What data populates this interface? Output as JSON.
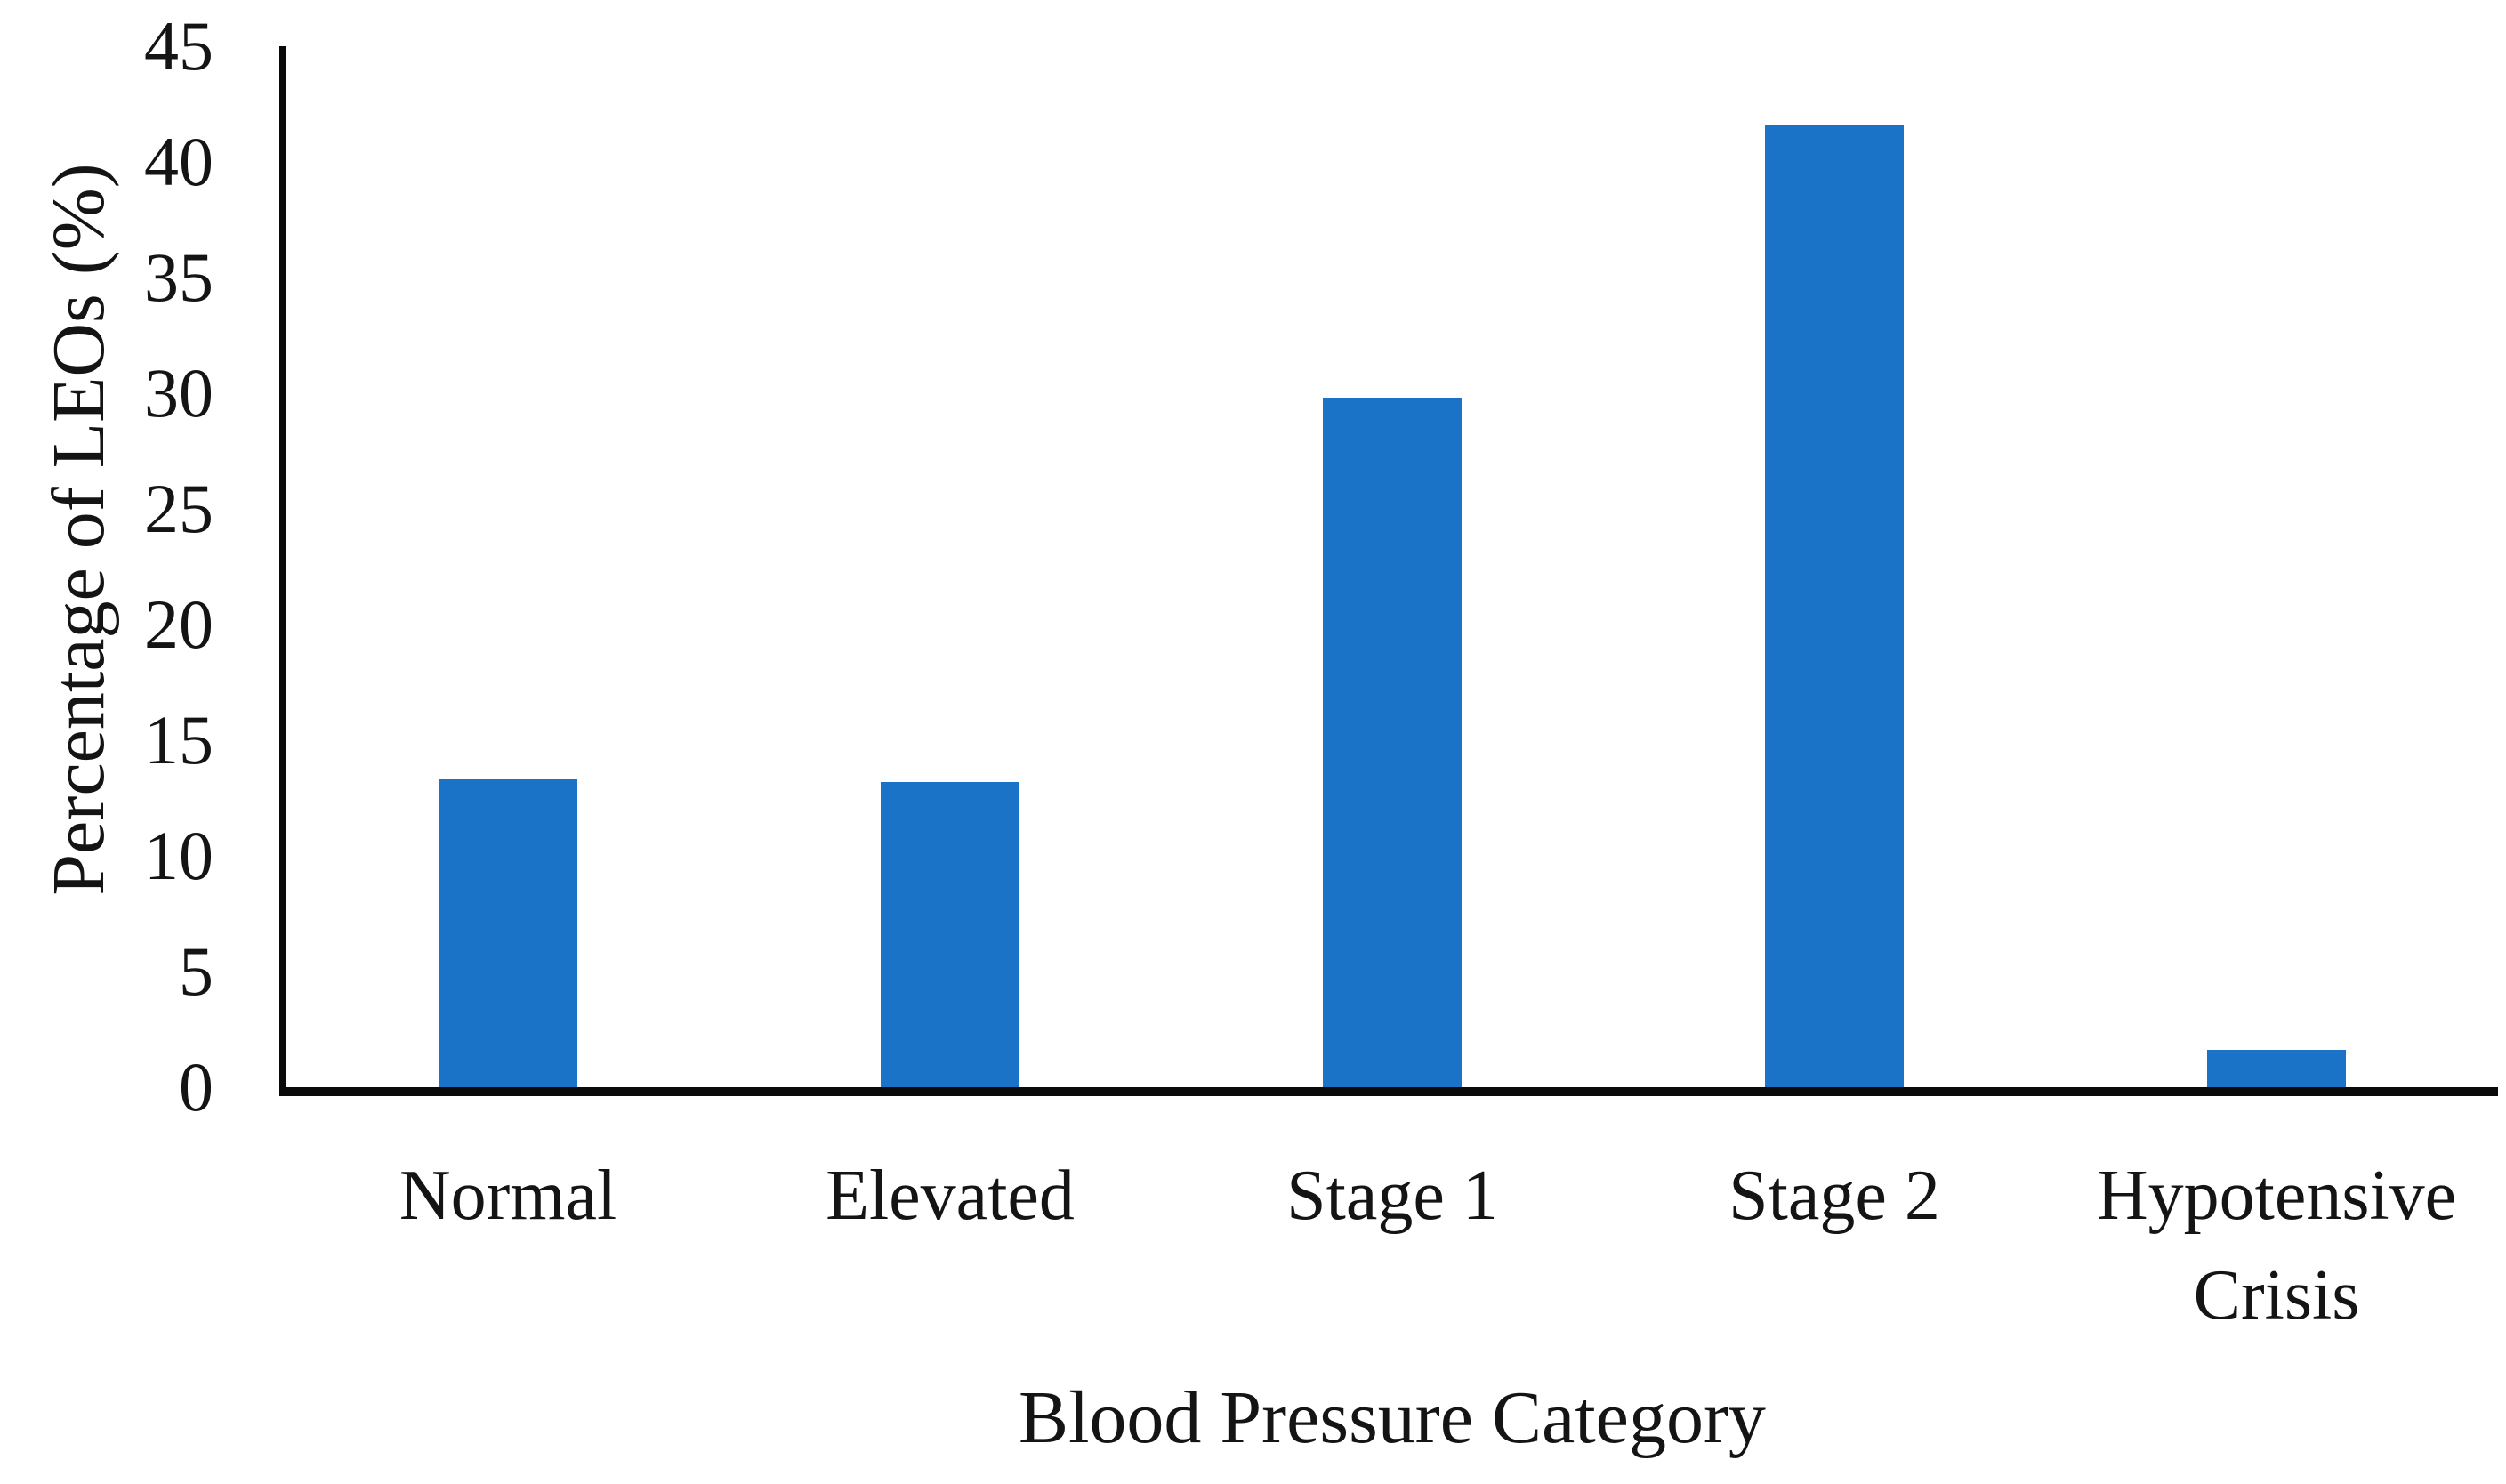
{
  "chart_data": {
    "type": "bar",
    "categories": [
      "Normal",
      "Elevated",
      "Stage 1",
      "Stage 2",
      "Hypotensive Crisis"
    ],
    "values": [
      13.3,
      13.2,
      29.8,
      41.6,
      1.6
    ],
    "title": "",
    "xlabel": "Blood Pressure Category",
    "ylabel": "Percentage of LEOs (%)",
    "ylim": [
      0,
      45
    ],
    "ytick_step": 5,
    "ytick_labels": [
      "0",
      "5",
      "10",
      "15",
      "20",
      "25",
      "30",
      "35",
      "40",
      "45"
    ],
    "grid": false,
    "legend": false,
    "bar_color": "#1B73C8",
    "axis_color": "#0a0a0a",
    "text_color": "#141414"
  }
}
